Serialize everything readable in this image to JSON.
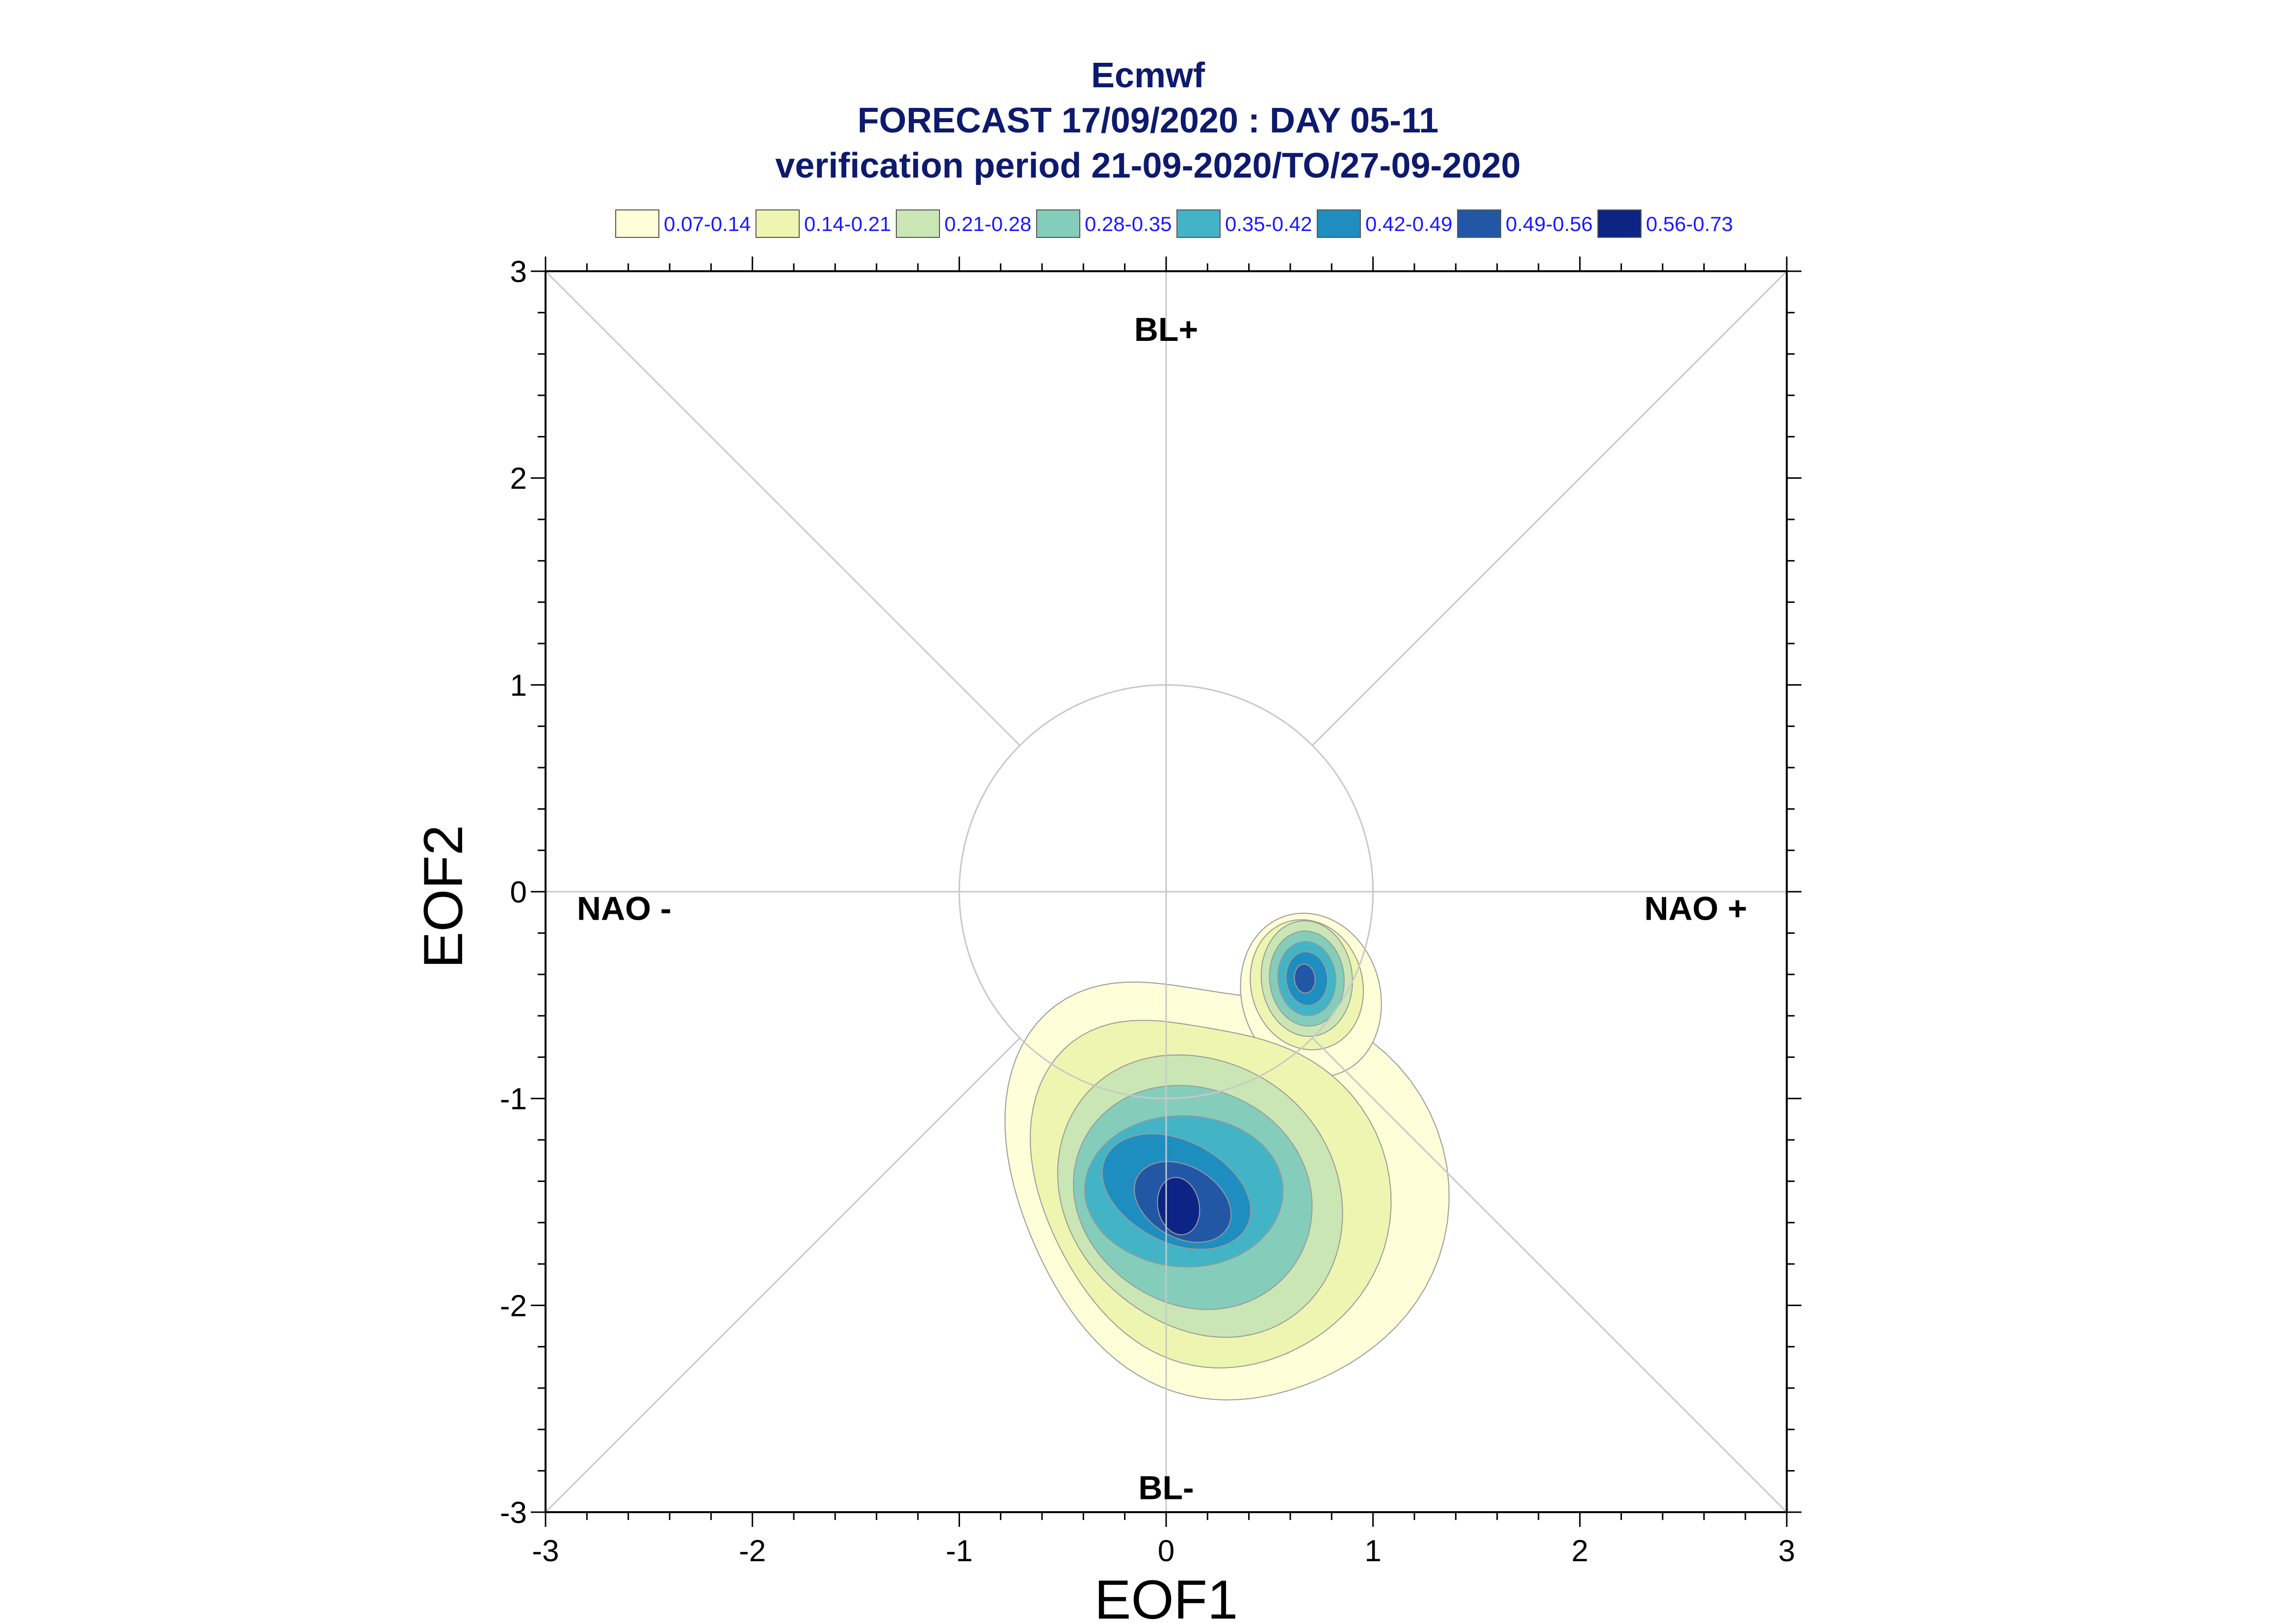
{
  "chart_data": {
    "type": "contour",
    "title": [
      "Ecmwf",
      "FORECAST 17/09/2020 : DAY 05-11",
      "verification period 21-09-2020/TO/27-09-2020"
    ],
    "xlabel": "EOF1",
    "ylabel": "EOF2",
    "xlim": [
      -3,
      3
    ],
    "ylim": [
      -3,
      3
    ],
    "xticks": [
      "-3",
      "-2",
      "-1",
      "0",
      "1",
      "2",
      "3"
    ],
    "yticks": [
      "-3",
      "-2",
      "-1",
      "0",
      "1",
      "2",
      "3"
    ],
    "grid": false,
    "legend_position": "top",
    "regime_labels": [
      {
        "text": "BL+",
        "x": 0,
        "y": 2.72
      },
      {
        "text": "BL-",
        "x": 0,
        "y": -2.88
      },
      {
        "text": "NAO -",
        "x": -2.62,
        "y": -0.08
      },
      {
        "text": "NAO +",
        "x": 2.56,
        "y": -0.08
      }
    ],
    "reference_circle_radius": 1,
    "levels": [
      {
        "label": "0.07-0.14",
        "color": "#fefed8"
      },
      {
        "label": "0.14-0.21",
        "color": "#eef5b0"
      },
      {
        "label": "0.21-0.28",
        "color": "#c9e6b4"
      },
      {
        "label": "0.28-0.35",
        "color": "#84cdbb"
      },
      {
        "label": "0.35-0.42",
        "color": "#43b4c5"
      },
      {
        "label": "0.42-0.49",
        "color": "#1e8dc0"
      },
      {
        "label": "0.49-0.56",
        "color": "#2257a6"
      },
      {
        "label": "0.56-0.73",
        "color": "#0c2484"
      }
    ],
    "density_peaks": [
      {
        "eof1": 0.05,
        "eof2": -1.5,
        "max": 0.7
      },
      {
        "eof1": 0.68,
        "eof2": -0.42,
        "max": 0.52
      }
    ]
  }
}
